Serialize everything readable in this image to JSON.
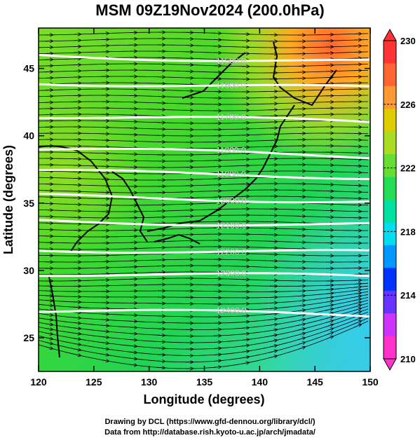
{
  "title": "MSM 09Z19Nov2024 (200.0hPa)",
  "x_axis": {
    "label": "Longitude (degrees)",
    "range": [
      120,
      150
    ],
    "ticks": [
      "120",
      "125",
      "130",
      "135",
      "140",
      "145",
      "150"
    ]
  },
  "y_axis": {
    "label": "Latitude (degrees)",
    "range": [
      22.5,
      48
    ],
    "ticks": [
      "25",
      "30",
      "35",
      "40",
      "45"
    ]
  },
  "colorbar": {
    "range": [
      210,
      230
    ],
    "ticks": [
      "210",
      "214",
      "218",
      "222",
      "226",
      "230"
    ],
    "colors": [
      "#ff33cc",
      "#cc33ff",
      "#6633ff",
      "#0033ff",
      "#0099ff",
      "#00ddee",
      "#00e0a0",
      "#22dd55",
      "#66dd33",
      "#aadd22",
      "#ddcc00",
      "#ff9933",
      "#ff6633",
      "#ff3333"
    ]
  },
  "contours": [
    {
      "label": "11500.0",
      "lat": 46.0
    },
    {
      "label": "11600.0",
      "lat": 44.0
    },
    {
      "label": "11700.0",
      "lat": 41.5
    },
    {
      "label": "11800.0",
      "lat": 39.0
    },
    {
      "label": "11900.0",
      "lat": 37.3
    },
    {
      "label": "12000.0",
      "lat": 35.5
    },
    {
      "label": "12100.0",
      "lat": 33.7
    },
    {
      "label": "12200.0",
      "lat": 31.6
    },
    {
      "label": "12300.0",
      "lat": 29.8
    },
    {
      "label": "12400.0",
      "lat": 27.0
    }
  ],
  "credits": {
    "line1": "Drawing by DCL (https://www.gfd-dennou.org/library/dcl/)",
    "line2": "Data from http://database.rish.kyoto-u.ac.jp/arch/jmadata/"
  }
}
